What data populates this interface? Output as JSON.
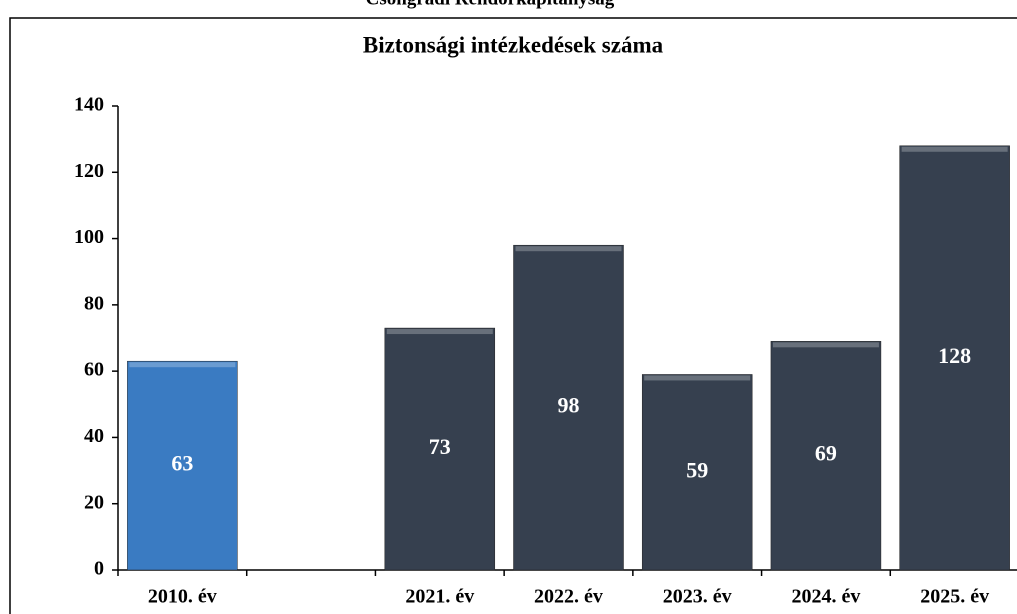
{
  "header": "Csongrádi Rendőrkapitányság",
  "chart_data": {
    "type": "bar",
    "title": "Biztonsági intézkedések száma",
    "categories": [
      "2010. év",
      null,
      "2021. év",
      "2022. év",
      "2023. év",
      "2024. év",
      "2025. év"
    ],
    "values": [
      63,
      null,
      73,
      98,
      59,
      69,
      128
    ],
    "colors": [
      "#3a7bc2",
      "#36404f",
      "#36404f",
      "#36404f",
      "#36404f",
      "#36404f",
      "#36404f"
    ],
    "ylim": [
      0,
      140
    ],
    "yticks": [
      0,
      20,
      40,
      60,
      80,
      100,
      120,
      140
    ],
    "grid": false
  }
}
